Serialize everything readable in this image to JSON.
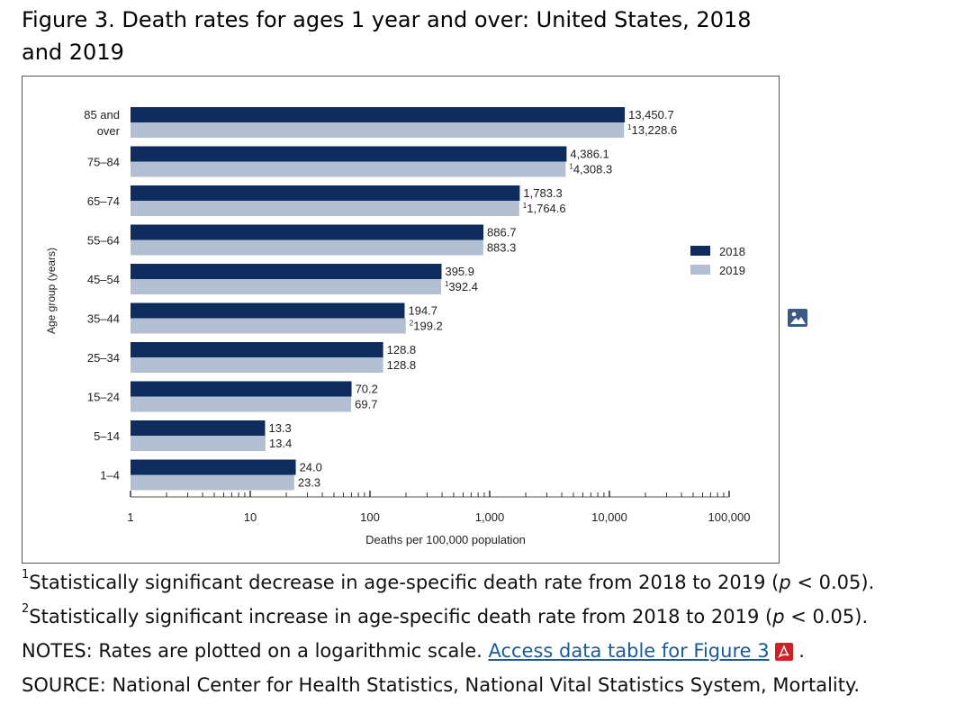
{
  "page": {
    "title": "Figure 3. Death rates for ages 1 year and over: United States, 2018 and 2019"
  },
  "chart_data": {
    "type": "bar",
    "orientation": "horizontal",
    "scale": "log",
    "xlim": [
      1,
      100000
    ],
    "x_ticks": [
      "1",
      "10",
      "100",
      "1,000",
      "10,000",
      "100,000"
    ],
    "xlabel": "Deaths per 100,000 population",
    "ylabel": "Age group (years)",
    "legend_position": "right",
    "categories": [
      "85 and over",
      "75–84",
      "65–74",
      "55–64",
      "45–54",
      "35–44",
      "25–34",
      "15–24",
      "5–14",
      "1–4"
    ],
    "series": [
      {
        "name": "2018",
        "color": "#0e2d5e",
        "values": [
          13450.7,
          4386.1,
          1783.3,
          886.7,
          395.9,
          194.7,
          128.8,
          70.2,
          13.3,
          24.0
        ],
        "labels": [
          "13,450.7",
          "4,386.1",
          "1,783.3",
          "886.7",
          "395.9",
          "194.7",
          "128.8",
          "70.2",
          "13.3",
          "24.0"
        ],
        "markers": [
          "",
          "",
          "",
          "",
          "",
          "",
          "",
          "",
          "",
          ""
        ]
      },
      {
        "name": "2019",
        "color": "#b2bfd3",
        "values": [
          13228.6,
          4308.3,
          1764.6,
          883.3,
          392.4,
          199.2,
          128.8,
          69.7,
          13.4,
          23.3
        ],
        "labels": [
          "13,228.6",
          "4,308.3",
          "1,764.6",
          "883.3",
          "392.4",
          "199.2",
          "128.8",
          "69.7",
          "13.4",
          "23.3"
        ],
        "markers": [
          "1",
          "1",
          "1",
          "",
          "1",
          "2",
          "",
          "",
          "",
          ""
        ]
      }
    ]
  },
  "notes": {
    "footnote1_marker": "1",
    "footnote1_text": "Statistically significant decrease in age-specific death rate from 2018 to 2019 (",
    "footnote1_p": "p",
    "footnote1_end": " < 0.05).",
    "footnote2_marker": "2",
    "footnote2_text": "Statistically significant increase in age-specific death rate from 2018 to 2019 (",
    "footnote2_p": "p",
    "footnote2_end": " < 0.05).",
    "notes_text": "NOTES: Rates are plotted on a logarithmic scale. ",
    "link_text": "Access data table for Figure 3",
    "notes_end": " .",
    "source_text": "SOURCE: National Center for Health Statistics, National Vital Statistics System, Mortality."
  },
  "icons": {
    "image": "image-icon",
    "pdf": "pdf-icon"
  }
}
